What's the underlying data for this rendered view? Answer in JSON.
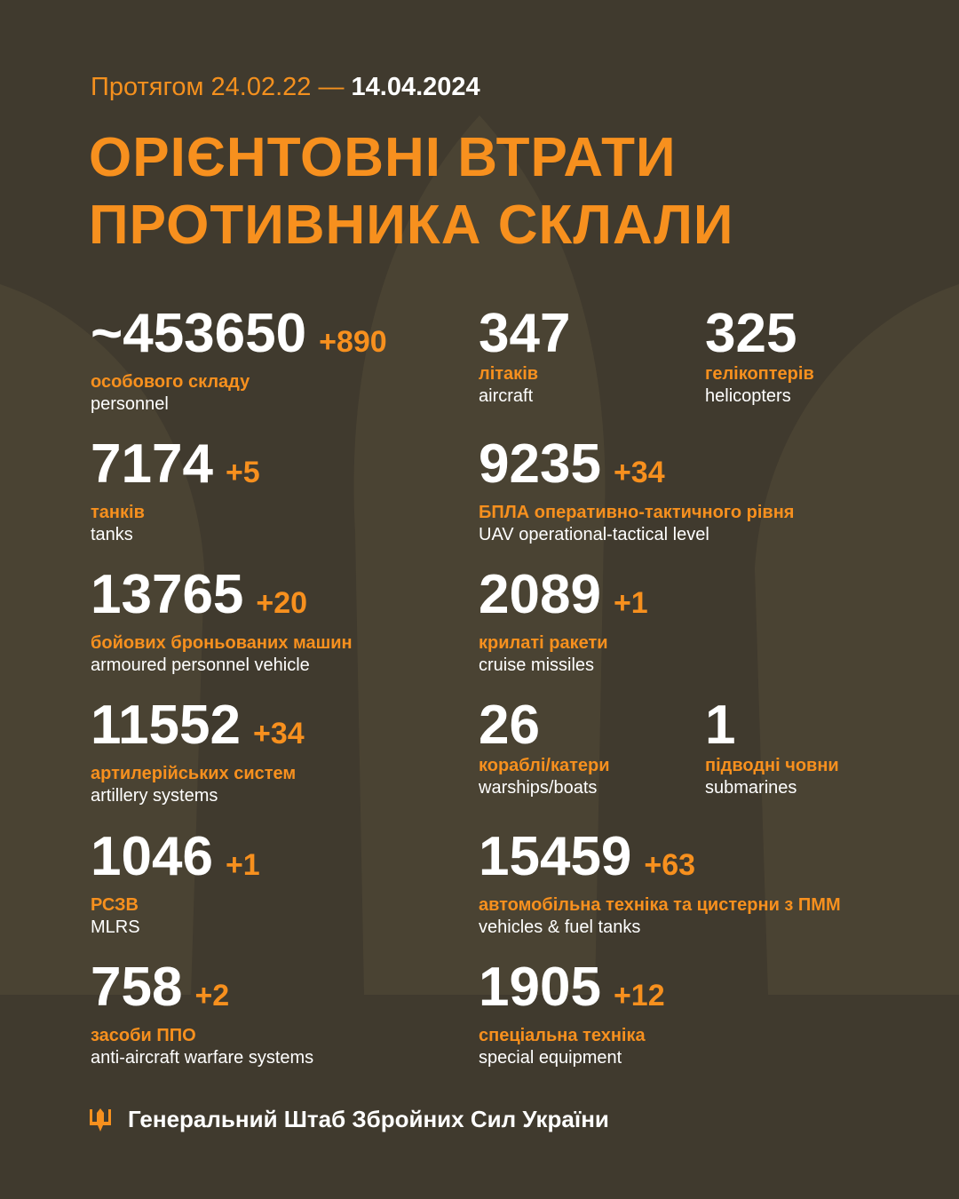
{
  "header": {
    "period_prefix": "Протягом 24.02.22 —",
    "period_date": "14.04.2024",
    "title_line1": "ОРІЄНТОВНІ ВТРАТИ",
    "title_line2": "ПРОТИВНИКА СКЛАЛИ"
  },
  "stats": [
    {
      "value": "~453650",
      "delta": "+890",
      "label_uk": "особового складу",
      "label_en": "personnel"
    },
    {
      "value": "347",
      "delta": "",
      "label_uk": "літаків",
      "label_en": "aircraft"
    },
    {
      "value": "325",
      "delta": "",
      "label_uk": "гелікоптерів",
      "label_en": "helicopters"
    },
    {
      "value": "7174",
      "delta": "+5",
      "label_uk": "танків",
      "label_en": "tanks"
    },
    {
      "value": "9235",
      "delta": "+34",
      "label_uk": "БПЛА оперативно-тактичного рівня",
      "label_en": "UAV operational-tactical level"
    },
    {
      "value": "13765",
      "delta": "+20",
      "label_uk": "бойових броньованих машин",
      "label_en": "armoured personnel vehicle"
    },
    {
      "value": "2089",
      "delta": "+1",
      "label_uk": "крилаті ракети",
      "label_en": "cruise missiles"
    },
    {
      "value": "11552",
      "delta": "+34",
      "label_uk": "артилерійських систем",
      "label_en": "artillery systems"
    },
    {
      "value": "26",
      "delta": "",
      "label_uk": "кораблі/катери",
      "label_en": "warships/boats"
    },
    {
      "value": "1",
      "delta": "",
      "label_uk": "підводні човни",
      "label_en": "submarines"
    },
    {
      "value": "1046",
      "delta": "+1",
      "label_uk": "РСЗВ",
      "label_en": "MLRS"
    },
    {
      "value": "15459",
      "delta": "+63",
      "label_uk": "автомобільна техніка та цистерни з ПММ",
      "label_en": "vehicles & fuel tanks"
    },
    {
      "value": "758",
      "delta": "+2",
      "label_uk": "засоби ППО",
      "label_en": "anti-aircraft warfare systems"
    },
    {
      "value": "1905",
      "delta": "+12",
      "label_uk": "спеціальна техніка",
      "label_en": "special equipment"
    }
  ],
  "footer": {
    "icon": "trident-icon",
    "text": "Генеральний Штаб Збройних Сил України"
  },
  "colors": {
    "background": "#403a2e",
    "accent": "#f7901e",
    "text": "#ffffff"
  }
}
